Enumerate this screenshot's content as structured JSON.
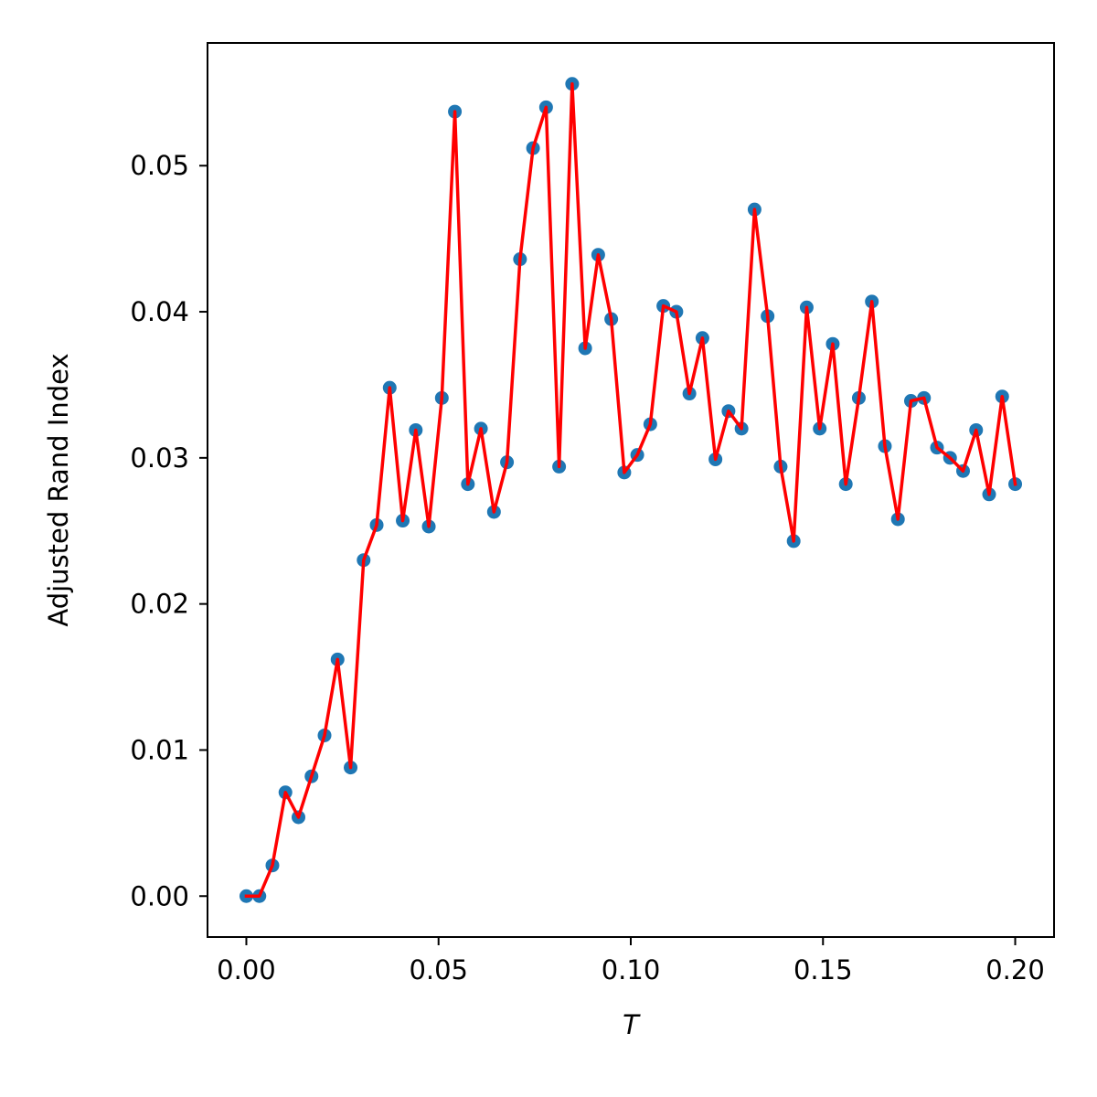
{
  "chart_data": {
    "type": "line",
    "title": "",
    "xlabel": "T",
    "ylabel": "Adjusted Rand Index",
    "xlim": [
      -0.0101,
      0.2101
    ],
    "ylim": [
      -0.0028,
      0.0584
    ],
    "xticks": [
      0.0,
      0.05,
      0.1,
      0.15,
      0.2
    ],
    "xtick_labels": [
      "0.00",
      "0.05",
      "0.10",
      "0.15",
      "0.20"
    ],
    "yticks": [
      0.0,
      0.01,
      0.02,
      0.03,
      0.04,
      0.05
    ],
    "ytick_labels": [
      "0.00",
      "0.01",
      "0.02",
      "0.03",
      "0.04",
      "0.05"
    ],
    "grid": false,
    "series": [
      {
        "marker_color": "#1f77b4",
        "line_color": "#ff0000",
        "x": [
          0.0,
          0.00339,
          0.00678,
          0.01017,
          0.01356,
          0.01695,
          0.02034,
          0.02373,
          0.02712,
          0.03051,
          0.0339,
          0.03729,
          0.04068,
          0.04407,
          0.04746,
          0.05085,
          0.05424,
          0.05763,
          0.06102,
          0.06441,
          0.0678,
          0.07119,
          0.07458,
          0.07797,
          0.08136,
          0.08475,
          0.08814,
          0.09153,
          0.09492,
          0.09831,
          0.10169,
          0.10508,
          0.10847,
          0.11186,
          0.11525,
          0.11864,
          0.12203,
          0.12542,
          0.12881,
          0.1322,
          0.13559,
          0.13898,
          0.14237,
          0.14576,
          0.14915,
          0.15254,
          0.15593,
          0.15932,
          0.16271,
          0.1661,
          0.16949,
          0.17288,
          0.17627,
          0.17966,
          0.18305,
          0.18644,
          0.18983,
          0.19322,
          0.19661,
          0.2
        ],
        "y": [
          0.0,
          0.0,
          0.0021,
          0.0071,
          0.0054,
          0.0082,
          0.011,
          0.0162,
          0.0088,
          0.023,
          0.0254,
          0.0348,
          0.0257,
          0.0319,
          0.0253,
          0.0341,
          0.0537,
          0.0282,
          0.032,
          0.0263,
          0.0297,
          0.0436,
          0.0512,
          0.054,
          0.0294,
          0.0556,
          0.0375,
          0.0439,
          0.0395,
          0.029,
          0.0302,
          0.0323,
          0.0404,
          0.04,
          0.0344,
          0.0382,
          0.0299,
          0.0332,
          0.032,
          0.047,
          0.0397,
          0.0294,
          0.0243,
          0.0403,
          0.032,
          0.0378,
          0.0282,
          0.0341,
          0.0407,
          0.0308,
          0.0258,
          0.0339,
          0.0341,
          0.0307,
          0.03,
          0.0291,
          0.0319,
          0.0275,
          0.0342,
          0.0282
        ]
      }
    ]
  }
}
